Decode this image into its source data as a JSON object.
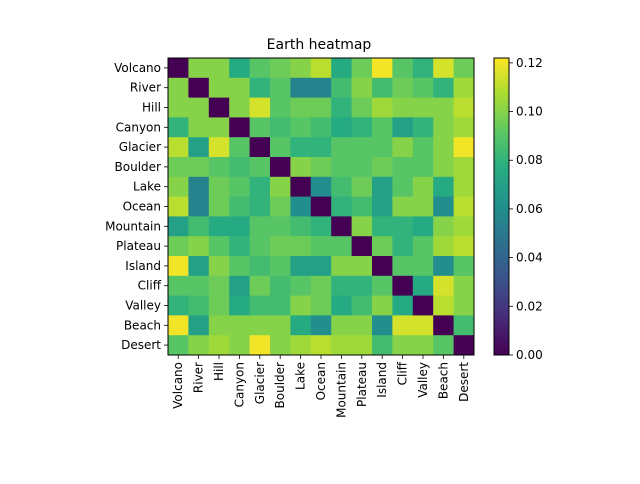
{
  "chart_data": {
    "type": "heatmap",
    "title": "Earth heatmap",
    "labels": [
      "Volcano",
      "River",
      "Hill",
      "Canyon",
      "Glacier",
      "Boulder",
      "Lake",
      "Ocean",
      "Mountain",
      "Plateau",
      "Island",
      "Cliff",
      "Valley",
      "Beach",
      "Desert"
    ],
    "matrix": [
      [
        0.0,
        0.1,
        0.1,
        0.075,
        0.09,
        0.095,
        0.1,
        0.11,
        0.075,
        0.095,
        0.12,
        0.09,
        0.08,
        0.115,
        0.095
      ],
      [
        0.1,
        0.0,
        0.1,
        0.1,
        0.08,
        0.09,
        0.055,
        0.055,
        0.085,
        0.1,
        0.085,
        0.095,
        0.09,
        0.08,
        0.105
      ],
      [
        0.1,
        0.1,
        0.0,
        0.1,
        0.115,
        0.09,
        0.095,
        0.095,
        0.08,
        0.095,
        0.105,
        0.1,
        0.1,
        0.1,
        0.11
      ],
      [
        0.08,
        0.1,
        0.1,
        0.0,
        0.09,
        0.085,
        0.09,
        0.085,
        0.075,
        0.08,
        0.09,
        0.07,
        0.08,
        0.1,
        0.105
      ],
      [
        0.11,
        0.07,
        0.115,
        0.09,
        0.0,
        0.09,
        0.08,
        0.08,
        0.09,
        0.09,
        0.09,
        0.1,
        0.09,
        0.1,
        0.12
      ],
      [
        0.095,
        0.095,
        0.09,
        0.085,
        0.09,
        0.0,
        0.1,
        0.095,
        0.09,
        0.09,
        0.095,
        0.09,
        0.09,
        0.1,
        0.105
      ],
      [
        0.1,
        0.055,
        0.095,
        0.09,
        0.08,
        0.1,
        0.0,
        0.06,
        0.085,
        0.095,
        0.07,
        0.09,
        0.1,
        0.075,
        0.105
      ],
      [
        0.11,
        0.055,
        0.095,
        0.085,
        0.08,
        0.095,
        0.06,
        0.0,
        0.08,
        0.085,
        0.07,
        0.1,
        0.1,
        0.06,
        0.11
      ],
      [
        0.07,
        0.085,
        0.075,
        0.075,
        0.09,
        0.09,
        0.085,
        0.08,
        0.0,
        0.1,
        0.08,
        0.08,
        0.075,
        0.1,
        0.105
      ],
      [
        0.095,
        0.1,
        0.09,
        0.08,
        0.09,
        0.095,
        0.095,
        0.09,
        0.09,
        0.0,
        0.095,
        0.08,
        0.09,
        0.105,
        0.11
      ],
      [
        0.12,
        0.07,
        0.1,
        0.09,
        0.085,
        0.09,
        0.07,
        0.07,
        0.1,
        0.1,
        0.0,
        0.09,
        0.09,
        0.06,
        0.09
      ],
      [
        0.09,
        0.09,
        0.095,
        0.07,
        0.095,
        0.085,
        0.09,
        0.095,
        0.08,
        0.08,
        0.09,
        0.0,
        0.075,
        0.115,
        0.1
      ],
      [
        0.08,
        0.085,
        0.095,
        0.075,
        0.085,
        0.085,
        0.1,
        0.095,
        0.075,
        0.085,
        0.1,
        0.075,
        0.0,
        0.11,
        0.1
      ],
      [
        0.12,
        0.07,
        0.1,
        0.1,
        0.1,
        0.1,
        0.075,
        0.06,
        0.1,
        0.1,
        0.06,
        0.115,
        0.115,
        0.0,
        0.085
      ],
      [
        0.09,
        0.1,
        0.105,
        0.1,
        0.12,
        0.1,
        0.105,
        0.11,
        0.105,
        0.105,
        0.085,
        0.1,
        0.1,
        0.09,
        0.0
      ]
    ],
    "colorbar": {
      "colormap": "viridis",
      "range": [
        0.0,
        0.122
      ],
      "ticks": [
        0.0,
        0.02,
        0.04,
        0.06,
        0.08,
        0.1,
        0.12
      ],
      "tick_labels": [
        "0.00",
        "0.02",
        "0.04",
        "0.06",
        "0.08",
        "0.10",
        "0.12"
      ]
    }
  }
}
